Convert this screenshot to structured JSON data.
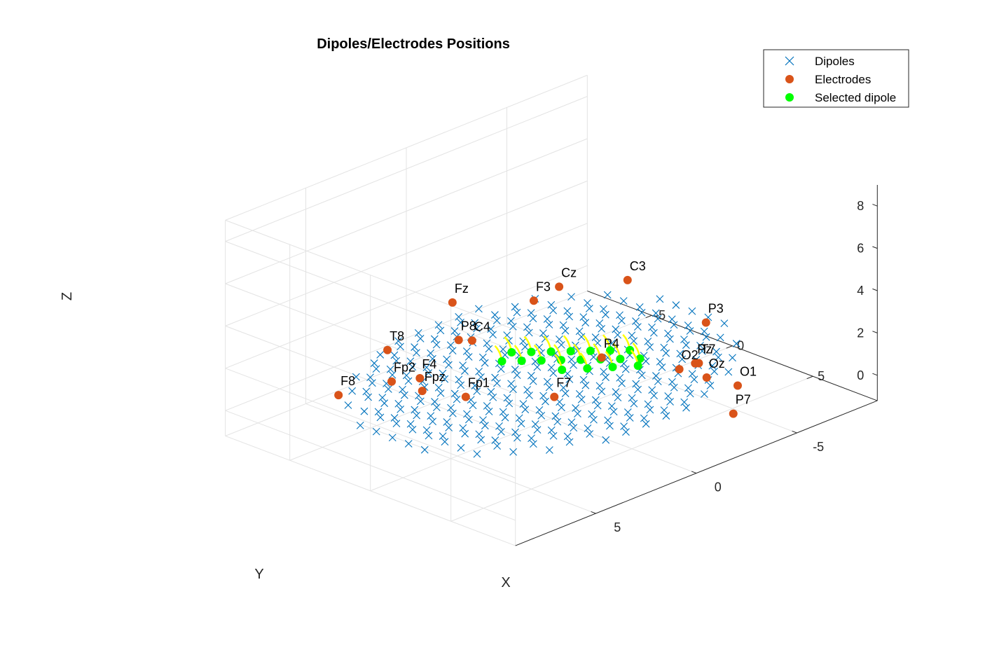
{
  "chart_data": {
    "type": "scatter",
    "title": "Dipoles/Electrodes Positions",
    "xlabel": "X",
    "ylabel": "Y",
    "zlabel": "Z",
    "xlim": [
      -9,
      9
    ],
    "ylim": [
      -9,
      9
    ],
    "zlim": [
      -1.2,
      9
    ],
    "x_ticks": [
      "-5",
      "0",
      "5"
    ],
    "y_ticks": [
      "-5",
      "0",
      "5"
    ],
    "z_ticks": [
      "0",
      "2",
      "4",
      "6",
      "8"
    ],
    "grid": true,
    "legend_position": "top-right",
    "legend": [
      "Dipoles",
      "Electrodes",
      "Selected dipole"
    ],
    "colors": {
      "dipoles": "#0072BD",
      "electrodes": "#D95319",
      "selected": "#00FF00",
      "orientation": "#FFFF00"
    },
    "dipoles": {
      "grid_spacing": 1,
      "x_range": [
        -7,
        7
      ],
      "y_range": [
        -7,
        7
      ],
      "head_radius": 8.6,
      "z_surface": 1.2
    },
    "electrodes": [
      {
        "label": "Fp1",
        "x": 6.1,
        "y": 2.3,
        "z": 2.8
      },
      {
        "label": "Fpz",
        "x": 6.5,
        "y": 0.1,
        "z": 2.6
      },
      {
        "label": "Fp2",
        "x": 6.1,
        "y": -2.3,
        "z": 2.2
      },
      {
        "label": "F7",
        "x": 4.1,
        "y": 5.3,
        "z": 2.9
      },
      {
        "label": "F3",
        "x": 4.8,
        "y": 4.9,
        "z": 7.6
      },
      {
        "label": "Fz",
        "x": 5.8,
        "y": 1.1,
        "z": 6.8
      },
      {
        "label": "F4",
        "x": 7.1,
        "y": 0.7,
        "z": 3.6
      },
      {
        "label": "F8",
        "x": 6.9,
        "y": -4.6,
        "z": 1.2
      },
      {
        "label": "T7",
        "x": -0.6,
        "y": 8.4,
        "z": 3.6
      },
      {
        "label": "C3",
        "x": 2.3,
        "y": 7.6,
        "z": 8.4
      },
      {
        "label": "Cz",
        "x": 3.7,
        "y": 5.1,
        "z": 7.9
      },
      {
        "label": "C4",
        "x": 3.3,
        "y": -0.8,
        "z": 3.5
      },
      {
        "label": "T8",
        "x": 2.3,
        "y": -7.3,
        "z": 0.8
      },
      {
        "label": "P7",
        "x": -2.8,
        "y": 7.8,
        "z": 0.2
      },
      {
        "label": "P3",
        "x": -0.8,
        "y": 8.6,
        "z": 5.5
      },
      {
        "label": "Pz",
        "x": -0.5,
        "y": 8.3,
        "z": 3.6
      },
      {
        "label": "P4",
        "x": -0.5,
        "y": 2.5,
        "z": 2.2
      },
      {
        "label": "P8",
        "x": -0.2,
        "y": -6.0,
        "z": 0.7
      },
      {
        "label": "O1",
        "x": -4.7,
        "y": 5.7,
        "z": 0.2
      },
      {
        "label": "Oz",
        "x": -4.6,
        "y": 3.9,
        "z": 0.1
      },
      {
        "label": "O2",
        "x": -4.2,
        "y": 2.7,
        "z": 0.3
      }
    ],
    "selected_dipoles": [
      {
        "x": 0.8,
        "y": 6.5,
        "z": 3.8
      },
      {
        "x": 1.3,
        "y": 5.9,
        "z": 3.8
      },
      {
        "x": 1.8,
        "y": 5.3,
        "z": 3.8
      },
      {
        "x": 2.3,
        "y": 4.7,
        "z": 3.8
      },
      {
        "x": 2.8,
        "y": 4.1,
        "z": 3.8
      },
      {
        "x": 3.3,
        "y": 3.5,
        "z": 3.8
      },
      {
        "x": 3.8,
        "y": 2.9,
        "z": 3.8
      },
      {
        "x": 4.3,
        "y": 2.3,
        "z": 3.8
      },
      {
        "x": 0.5,
        "y": 5.5,
        "z": 3.8
      },
      {
        "x": 1.0,
        "y": 4.9,
        "z": 3.8
      },
      {
        "x": 1.5,
        "y": 4.3,
        "z": 3.8
      },
      {
        "x": 2.0,
        "y": 3.7,
        "z": 3.8
      },
      {
        "x": 2.5,
        "y": 3.1,
        "z": 3.8
      },
      {
        "x": 3.0,
        "y": 2.5,
        "z": 3.8
      },
      {
        "x": 3.5,
        "y": 1.9,
        "z": 3.8
      },
      {
        "x": 2.0,
        "y": 6.3,
        "z": 3.8
      },
      {
        "x": 2.7,
        "y": 5.6,
        "z": 3.8
      },
      {
        "x": 3.4,
        "y": 4.9,
        "z": 3.8
      },
      {
        "x": 1.3,
        "y": 7.0,
        "z": 3.8
      }
    ]
  }
}
